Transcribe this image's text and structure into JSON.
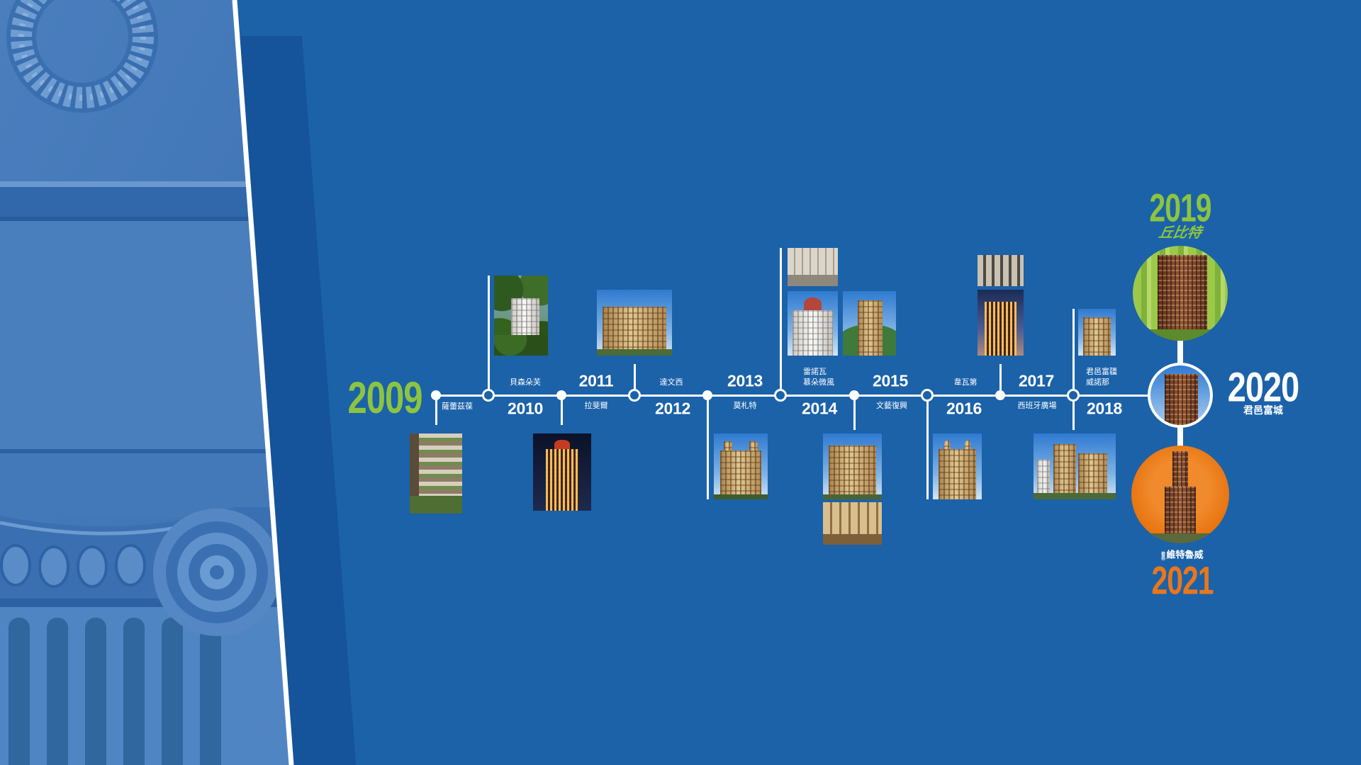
{
  "timeline": {
    "nodes": [
      {
        "year": "2009",
        "project": [
          "薩蕾茲葆"
        ]
      },
      {
        "year": "2010",
        "project": [
          "貝森朵芙"
        ]
      },
      {
        "year": "2011",
        "project": [
          "拉斐爾"
        ]
      },
      {
        "year": "2012",
        "project": [
          "達文西"
        ]
      },
      {
        "year": "2013",
        "project": [
          "莫札特"
        ]
      },
      {
        "year": "2014",
        "project": [
          "雷諾瓦",
          "慕朵微風"
        ]
      },
      {
        "year": "2015",
        "project": [
          "文藝復興"
        ]
      },
      {
        "year": "2016",
        "project": [
          "韋瓦第"
        ]
      },
      {
        "year": "2017",
        "project": [
          "西班牙廣場"
        ]
      },
      {
        "year": "2018",
        "project": [
          "君邑富疆",
          "威諾那"
        ]
      }
    ]
  },
  "upcoming": [
    {
      "year": "2019",
      "project": "丘比特"
    },
    {
      "year": "2020",
      "project": "君邑富城"
    },
    {
      "year": "2021",
      "project": "維特魯威",
      "brand_prefix": "君邑"
    }
  ],
  "colors": {
    "background": "#1b62a9",
    "accent_green": "#8dc43f",
    "accent_orange": "#e9771c",
    "text": "#ffffff"
  }
}
